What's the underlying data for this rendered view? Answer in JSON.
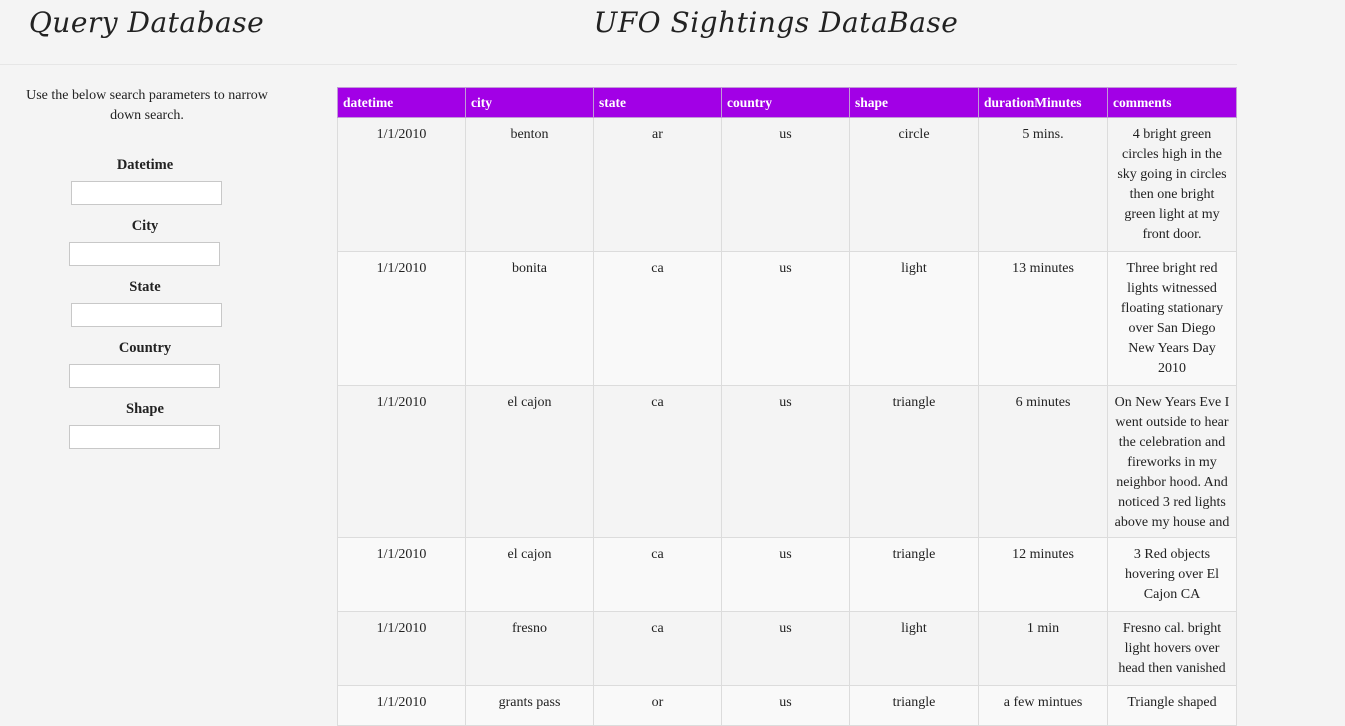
{
  "sidebar": {
    "title": "Query Database",
    "instructions": "Use the below search parameters to narrow down search.",
    "filters": [
      {
        "label": "Datetime",
        "value": "",
        "placeholder": ""
      },
      {
        "label": "City",
        "value": "",
        "placeholder": ""
      },
      {
        "label": "State",
        "value": "",
        "placeholder": ""
      },
      {
        "label": "Country",
        "value": "",
        "placeholder": ""
      },
      {
        "label": "Shape",
        "value": "",
        "placeholder": ""
      }
    ]
  },
  "main": {
    "title": "UFO Sightings DataBase",
    "table": {
      "columns": [
        "datetime",
        "city",
        "state",
        "country",
        "shape",
        "durationMinutes",
        "comments"
      ],
      "rows": [
        {
          "datetime": "1/1/2010",
          "city": "benton",
          "state": "ar",
          "country": "us",
          "shape": "circle",
          "durationMinutes": "5 mins.",
          "comments": "4 bright green circles high in the sky going in circles then one bright green light at my front door."
        },
        {
          "datetime": "1/1/2010",
          "city": "bonita",
          "state": "ca",
          "country": "us",
          "shape": "light",
          "durationMinutes": "13 minutes",
          "comments": "Three bright red lights witnessed floating stationary over San Diego New Years Day 2010"
        },
        {
          "datetime": "1/1/2010",
          "city": "el cajon",
          "state": "ca",
          "country": "us",
          "shape": "triangle",
          "durationMinutes": "6 minutes",
          "comments": "On New Years Eve I went outside to hear the celebration and fireworks in my neighbor hood. And noticed 3 red lights above my house and"
        },
        {
          "datetime": "1/1/2010",
          "city": "el cajon",
          "state": "ca",
          "country": "us",
          "shape": "triangle",
          "durationMinutes": "12 minutes",
          "comments": "3 Red objects hovering over El Cajon CA"
        },
        {
          "datetime": "1/1/2010",
          "city": "fresno",
          "state": "ca",
          "country": "us",
          "shape": "light",
          "durationMinutes": "1 min",
          "comments": "Fresno cal. bright light hovers over head then vanished"
        },
        {
          "datetime": "1/1/2010",
          "city": "grants pass",
          "state": "or",
          "country": "us",
          "shape": "triangle",
          "durationMinutes": "a few mintues",
          "comments": "Triangle shaped"
        }
      ]
    }
  }
}
